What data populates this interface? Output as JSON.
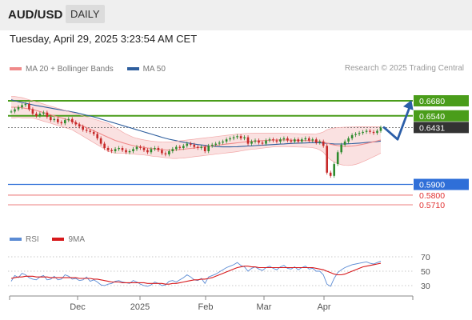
{
  "header": {
    "pair": "AUD/USD",
    "timeframe": "DAILY"
  },
  "datetime": "Tuesday, April 29, 2025 3:23:54 AM CET",
  "legend": {
    "items": [
      {
        "label": "MA 20 + Bollinger Bands",
        "color": "#f08a8a"
      },
      {
        "label": "MA 50",
        "color": "#2f5f9e"
      }
    ],
    "credit": "Research © 2025 Trading Central"
  },
  "rsi_legend": {
    "items": [
      {
        "label": "RSI",
        "color": "#5b8bd4"
      },
      {
        "label": "9MA",
        "color": "#d7191c"
      }
    ]
  },
  "chart_data": [
    {
      "type": "candlestick",
      "title": "AUD/USD daily",
      "x_ticks": [
        "Dec",
        "2025",
        "Feb",
        "Mar",
        "Apr"
      ],
      "last_price": 0.6431,
      "levels": [
        {
          "label": "0.6680",
          "value": 0.668,
          "kind": "resistance",
          "color": "#4a9d1a"
        },
        {
          "label": "0.6540",
          "value": 0.654,
          "kind": "resistance",
          "color": "#4a9d1a"
        },
        {
          "label": "0.6431",
          "value": 0.6431,
          "kind": "last",
          "color": "#333333"
        },
        {
          "label": "0.5900",
          "value": 0.59,
          "kind": "pivot",
          "color": "#2f6fd8"
        },
        {
          "label": "0.5800",
          "value": 0.58,
          "kind": "support",
          "color": "#e03030"
        },
        {
          "label": "0.5710",
          "value": 0.571,
          "kind": "support",
          "color": "#e03030"
        }
      ],
      "forecast": {
        "direction": "down then up",
        "from": 0.6431,
        "low": 0.632,
        "target": 0.668
      },
      "closes": [
        0.658,
        0.66,
        0.662,
        0.664,
        0.665,
        0.66,
        0.656,
        0.654,
        0.656,
        0.657,
        0.653,
        0.65,
        0.651,
        0.648,
        0.647,
        0.65,
        0.651,
        0.648,
        0.646,
        0.644,
        0.641,
        0.64,
        0.639,
        0.637,
        0.633,
        0.628,
        0.624,
        0.622,
        0.621,
        0.623,
        0.624,
        0.622,
        0.62,
        0.621,
        0.623,
        0.625,
        0.624,
        0.622,
        0.62,
        0.623,
        0.624,
        0.622,
        0.619,
        0.618,
        0.621,
        0.623,
        0.625,
        0.624,
        0.626,
        0.628,
        0.627,
        0.625,
        0.624,
        0.625,
        0.621,
        0.626,
        0.627,
        0.628,
        0.629,
        0.63,
        0.632,
        0.633,
        0.634,
        0.635,
        0.633,
        0.634,
        0.628,
        0.63,
        0.631,
        0.629,
        0.628,
        0.631,
        0.632,
        0.631,
        0.63,
        0.632,
        0.633,
        0.631,
        0.63,
        0.632,
        0.63,
        0.632,
        0.633,
        0.631,
        0.632,
        0.629,
        0.63,
        0.626,
        0.601,
        0.598,
        0.609,
        0.62,
        0.627,
        0.63,
        0.633,
        0.636,
        0.637,
        0.638,
        0.639,
        0.64,
        0.639,
        0.638,
        0.64,
        0.6431
      ],
      "ma20": [
        0.662,
        0.662,
        0.662,
        0.6615,
        0.661,
        0.6605,
        0.66,
        0.659,
        0.658,
        0.657,
        0.656,
        0.655,
        0.654,
        0.653,
        0.652,
        0.651,
        0.65,
        0.649,
        0.6475,
        0.646,
        0.6445,
        0.643,
        0.6415,
        0.64,
        0.6385,
        0.637,
        0.6355,
        0.634,
        0.6325,
        0.631,
        0.63,
        0.629,
        0.628,
        0.627,
        0.6262,
        0.6255,
        0.625,
        0.6245,
        0.624,
        0.6235,
        0.623,
        0.6228,
        0.6225,
        0.6222,
        0.622,
        0.622,
        0.6222,
        0.6225,
        0.6228,
        0.6232,
        0.6236,
        0.624,
        0.6244,
        0.6248,
        0.6252,
        0.6256,
        0.626,
        0.6264,
        0.6268,
        0.6272,
        0.6276,
        0.628,
        0.6284,
        0.6288,
        0.6292,
        0.6296,
        0.63,
        0.6302,
        0.6304,
        0.6306,
        0.6308,
        0.631,
        0.6312,
        0.6314,
        0.6315,
        0.6315,
        0.6315,
        0.6314,
        0.6313,
        0.6312,
        0.6311,
        0.631,
        0.6309,
        0.6308,
        0.6306,
        0.6304,
        0.63,
        0.6295,
        0.6285,
        0.6275,
        0.6268,
        0.6262,
        0.6258,
        0.6256,
        0.6256,
        0.6258,
        0.6262,
        0.6268,
        0.6275,
        0.6282,
        0.629,
        0.6298,
        0.6306,
        0.6315
      ],
      "bb_upper": [
        0.672,
        0.672,
        0.6715,
        0.671,
        0.67,
        0.669,
        0.668,
        0.667,
        0.666,
        0.665,
        0.664,
        0.663,
        0.662,
        0.661,
        0.66,
        0.659,
        0.658,
        0.657,
        0.656,
        0.655,
        0.654,
        0.653,
        0.652,
        0.651,
        0.65,
        0.649,
        0.648,
        0.647,
        0.645,
        0.643,
        0.641,
        0.639,
        0.637,
        0.6355,
        0.634,
        0.633,
        0.6322,
        0.6315,
        0.631,
        0.6305,
        0.63,
        0.6298,
        0.6296,
        0.6295,
        0.6295,
        0.6298,
        0.6302,
        0.6306,
        0.631,
        0.6314,
        0.6318,
        0.6322,
        0.6326,
        0.633,
        0.6334,
        0.6338,
        0.6342,
        0.6346,
        0.635,
        0.6354,
        0.6358,
        0.6362,
        0.6366,
        0.637,
        0.6372,
        0.6374,
        0.6376,
        0.6377,
        0.6378,
        0.6378,
        0.6378,
        0.6378,
        0.6378,
        0.6378,
        0.6378,
        0.6378,
        0.6377,
        0.6376,
        0.6375,
        0.6374,
        0.6373,
        0.6372,
        0.6371,
        0.637,
        0.637,
        0.6372,
        0.6378,
        0.639,
        0.641,
        0.642,
        0.6426,
        0.643,
        0.6432,
        0.6434,
        0.6435,
        0.6436,
        0.6437,
        0.6438,
        0.6438,
        0.6438,
        0.6438,
        0.6438,
        0.6438,
        0.6438
      ],
      "bb_lower": [
        0.652,
        0.652,
        0.6525,
        0.652,
        0.652,
        0.652,
        0.652,
        0.651,
        0.65,
        0.649,
        0.648,
        0.647,
        0.646,
        0.645,
        0.644,
        0.643,
        0.642,
        0.641,
        0.639,
        0.637,
        0.635,
        0.633,
        0.631,
        0.629,
        0.627,
        0.625,
        0.623,
        0.621,
        0.62,
        0.619,
        0.619,
        0.619,
        0.619,
        0.6185,
        0.6184,
        0.618,
        0.6178,
        0.6175,
        0.617,
        0.6165,
        0.616,
        0.6158,
        0.6154,
        0.6149,
        0.6145,
        0.6142,
        0.6142,
        0.6144,
        0.6146,
        0.615,
        0.6154,
        0.6158,
        0.6162,
        0.6166,
        0.617,
        0.6174,
        0.6178,
        0.6182,
        0.6186,
        0.619,
        0.6194,
        0.6198,
        0.6202,
        0.6206,
        0.6212,
        0.6218,
        0.6224,
        0.6227,
        0.623,
        0.6234,
        0.6238,
        0.6242,
        0.6246,
        0.625,
        0.6252,
        0.6252,
        0.6253,
        0.6252,
        0.6251,
        0.625,
        0.6249,
        0.6248,
        0.6247,
        0.6246,
        0.6242,
        0.6236,
        0.6222,
        0.62,
        0.616,
        0.613,
        0.611,
        0.6094,
        0.6084,
        0.6078,
        0.6077,
        0.608,
        0.6087,
        0.6098,
        0.6112,
        0.6126,
        0.6142,
        0.6158,
        0.6174,
        0.6192
      ],
      "ma50": [
        0.669,
        0.668,
        0.6672,
        0.6664,
        0.6657,
        0.665,
        0.6643,
        0.6636,
        0.663,
        0.6624,
        0.6618,
        0.6612,
        0.6606,
        0.66,
        0.6594,
        0.6588,
        0.6582,
        0.6576,
        0.657,
        0.6562,
        0.6554,
        0.6546,
        0.6538,
        0.653,
        0.652,
        0.651,
        0.65,
        0.649,
        0.648,
        0.647,
        0.646,
        0.645,
        0.644,
        0.643,
        0.642,
        0.641,
        0.64,
        0.639,
        0.638,
        0.637,
        0.636,
        0.635,
        0.634,
        0.633,
        0.6322,
        0.6315,
        0.6308,
        0.63,
        0.6294,
        0.6288,
        0.6282,
        0.6277,
        0.6272,
        0.6268,
        0.6264,
        0.626,
        0.6257,
        0.6254,
        0.6252,
        0.625,
        0.625,
        0.625,
        0.6251,
        0.6252,
        0.6254,
        0.6256,
        0.6258,
        0.626,
        0.6262,
        0.6264,
        0.6266,
        0.6268,
        0.627,
        0.6272,
        0.6274,
        0.6276,
        0.6278,
        0.628,
        0.6282,
        0.6284,
        0.6285,
        0.6286,
        0.6287,
        0.6288,
        0.6289,
        0.6289,
        0.6288,
        0.6286,
        0.6283,
        0.628,
        0.6278,
        0.6277,
        0.6277,
        0.6278,
        0.6279,
        0.6281,
        0.6283,
        0.6285,
        0.6288,
        0.6291,
        0.6294,
        0.6297,
        0.63,
        0.6305
      ]
    },
    {
      "type": "line",
      "title": "RSI",
      "y_ticks": [
        70,
        50,
        30
      ],
      "ylim": [
        20,
        80
      ],
      "x_ticks": [
        "Dec",
        "2025",
        "Feb",
        "Mar",
        "Apr"
      ],
      "series": [
        {
          "name": "RSI",
          "color": "#5b8bd4",
          "values": [
            36,
            44,
            41,
            47,
            45,
            41,
            39,
            38,
            42,
            44,
            38,
            39,
            43,
            38,
            39,
            45,
            43,
            39,
            40,
            37,
            38,
            42,
            36,
            38,
            35,
            31,
            30,
            32,
            33,
            36,
            37,
            35,
            34,
            33,
            37,
            35,
            32,
            30,
            29,
            31,
            35,
            33,
            30,
            31,
            36,
            37,
            35,
            38,
            41,
            45,
            42,
            38,
            37,
            40,
            33,
            42,
            44,
            46,
            49,
            52,
            55,
            57,
            59,
            62,
            58,
            56,
            50,
            54,
            56,
            53,
            51,
            55,
            57,
            54,
            52,
            56,
            58,
            54,
            53,
            56,
            52,
            55,
            57,
            53,
            54,
            50,
            50,
            45,
            32,
            29,
            40,
            48,
            52,
            55,
            57,
            59,
            60,
            61,
            62,
            63,
            61,
            60,
            62,
            64
          ]
        },
        {
          "name": "9MA",
          "color": "#d7191c",
          "values": [
            40,
            41,
            42,
            42,
            43,
            43,
            43,
            42,
            42,
            42,
            42,
            41,
            41,
            41,
            41,
            41,
            41,
            41,
            41,
            40,
            40,
            40,
            40,
            39,
            39,
            38,
            37,
            36,
            35,
            35,
            35,
            34,
            34,
            34,
            34,
            34,
            34,
            34,
            33,
            33,
            33,
            33,
            33,
            32,
            32,
            33,
            33,
            34,
            35,
            36,
            37,
            38,
            38,
            39,
            39,
            40,
            41,
            43,
            45,
            47,
            49,
            51,
            53,
            55,
            56,
            57,
            57,
            56,
            56,
            55,
            55,
            55,
            55,
            55,
            55,
            55,
            55,
            55,
            55,
            55,
            55,
            55,
            55,
            55,
            55,
            54,
            53,
            52,
            50,
            48,
            46,
            45,
            45,
            46,
            48,
            50,
            52,
            54,
            56,
            57,
            58,
            59,
            60,
            61
          ]
        }
      ]
    }
  ]
}
